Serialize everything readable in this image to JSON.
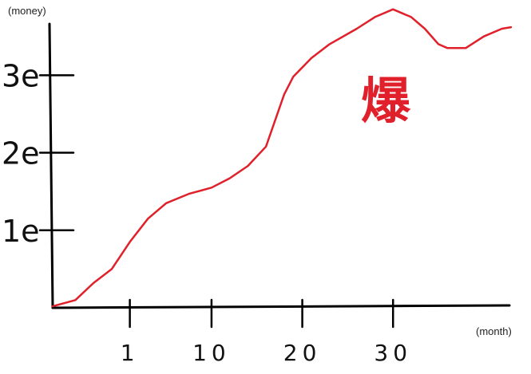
{
  "chart_data": {
    "type": "line",
    "ylabel": "(money)",
    "xlabel": "(month)",
    "y_ticks": [
      {
        "value": 1,
        "label": "1e"
      },
      {
        "value": 2,
        "label": "2e"
      },
      {
        "value": 3,
        "label": "3e"
      }
    ],
    "x_ticks": [
      {
        "value": 1,
        "label": "1"
      },
      {
        "value": 10,
        "label": "10"
      },
      {
        "value": 20,
        "label": "20"
      },
      {
        "value": 30,
        "label": "30"
      }
    ],
    "xlim": [
      -7.5,
      43
    ],
    "ylim": [
      0,
      3.6
    ],
    "series": [
      {
        "color": "#e0202a",
        "x": [
          -7.5,
          -5,
          -3,
          -1,
          1,
          3,
          5,
          7.5,
          10,
          12,
          14,
          16,
          18,
          19,
          21,
          23,
          26,
          28,
          30,
          32,
          33.5,
          35,
          36,
          38,
          40,
          42,
          43
        ],
        "y": [
          0.02,
          0.1,
          0.32,
          0.5,
          0.85,
          1.15,
          1.35,
          1.47,
          1.55,
          1.67,
          1.83,
          2.08,
          2.75,
          2.98,
          3.22,
          3.4,
          3.6,
          3.75,
          3.85,
          3.75,
          3.6,
          3.4,
          3.35,
          3.35,
          3.5,
          3.6,
          3.62
        ]
      }
    ],
    "annotation": {
      "text": "爆",
      "color": "#e0202a",
      "position": "upper-right"
    }
  }
}
